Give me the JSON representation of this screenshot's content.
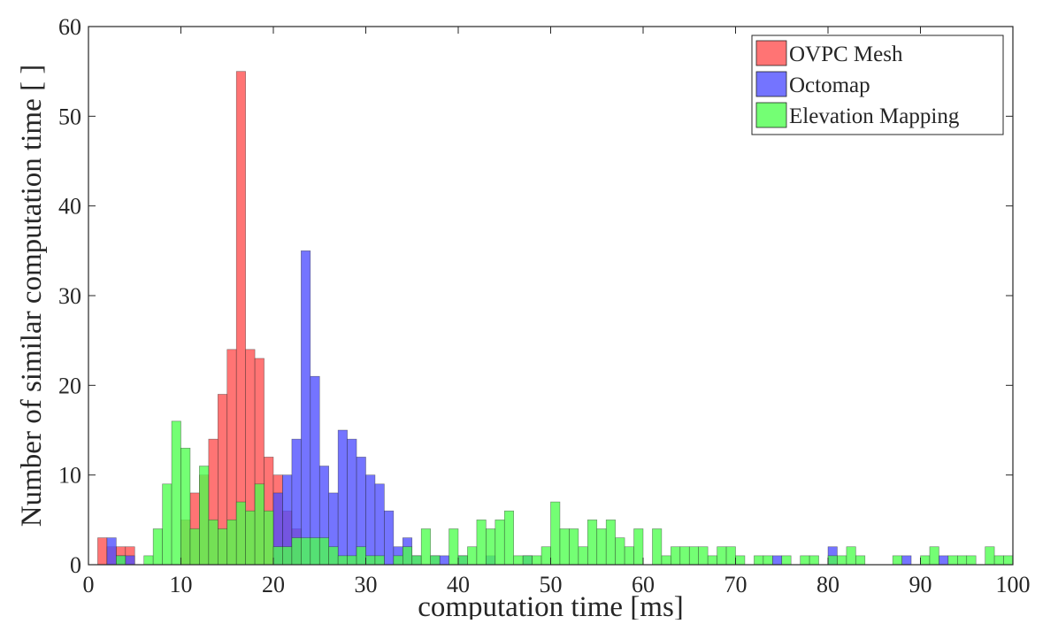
{
  "chart_data": {
    "type": "bar",
    "subtype": "overlaid-histogram",
    "xlabel": "computation time [ms]",
    "ylabel": "Number of similar computation time [ ]",
    "xlim": [
      0,
      100
    ],
    "ylim": [
      0,
      60
    ],
    "xticks": [
      "0",
      "10",
      "20",
      "30",
      "40",
      "50",
      "60",
      "70",
      "80",
      "90",
      "100"
    ],
    "yticks": [
      "0",
      "10",
      "20",
      "30",
      "40",
      "50",
      "60"
    ],
    "grid": false,
    "legend_position": "top-right",
    "bin_width": 1,
    "series": [
      {
        "name": "OVPC Mesh",
        "color": "#ff4d4d",
        "bins": [
          {
            "x0": 1,
            "count": 3
          },
          {
            "x0": 2,
            "count": 2
          },
          {
            "x0": 3,
            "count": 2
          },
          {
            "x0": 4,
            "count": 2
          },
          {
            "x0": 10,
            "count": 5
          },
          {
            "x0": 11,
            "count": 8
          },
          {
            "x0": 12,
            "count": 10
          },
          {
            "x0": 13,
            "count": 14
          },
          {
            "x0": 14,
            "count": 19
          },
          {
            "x0": 15,
            "count": 24
          },
          {
            "x0": 16,
            "count": 55
          },
          {
            "x0": 17,
            "count": 24
          },
          {
            "x0": 18,
            "count": 23
          },
          {
            "x0": 19,
            "count": 12
          },
          {
            "x0": 20,
            "count": 10
          },
          {
            "x0": 21,
            "count": 6
          },
          {
            "x0": 22,
            "count": 4
          }
        ]
      },
      {
        "name": "Octomap",
        "color": "#4d4dff",
        "bins": [
          {
            "x0": 2,
            "count": 3
          },
          {
            "x0": 3,
            "count": 1
          },
          {
            "x0": 4,
            "count": 1
          },
          {
            "x0": 20,
            "count": 8
          },
          {
            "x0": 21,
            "count": 10
          },
          {
            "x0": 22,
            "count": 14
          },
          {
            "x0": 23,
            "count": 35
          },
          {
            "x0": 24,
            "count": 21
          },
          {
            "x0": 25,
            "count": 11
          },
          {
            "x0": 26,
            "count": 8
          },
          {
            "x0": 27,
            "count": 15
          },
          {
            "x0": 28,
            "count": 14
          },
          {
            "x0": 29,
            "count": 12
          },
          {
            "x0": 30,
            "count": 10
          },
          {
            "x0": 31,
            "count": 9
          },
          {
            "x0": 32,
            "count": 6
          },
          {
            "x0": 33,
            "count": 2
          },
          {
            "x0": 34,
            "count": 3
          },
          {
            "x0": 35,
            "count": 1
          },
          {
            "x0": 37,
            "count": 1
          },
          {
            "x0": 38,
            "count": 1
          },
          {
            "x0": 40,
            "count": 1
          },
          {
            "x0": 43,
            "count": 1
          },
          {
            "x0": 47,
            "count": 1
          },
          {
            "x0": 74,
            "count": 1
          },
          {
            "x0": 80,
            "count": 2
          },
          {
            "x0": 88,
            "count": 1
          },
          {
            "x0": 92,
            "count": 1
          }
        ]
      },
      {
        "name": "Elevation Mapping",
        "color": "#4dff4d",
        "bins": [
          {
            "x0": 3,
            "count": 1
          },
          {
            "x0": 6,
            "count": 1
          },
          {
            "x0": 7,
            "count": 4
          },
          {
            "x0": 8,
            "count": 9
          },
          {
            "x0": 9,
            "count": 16
          },
          {
            "x0": 10,
            "count": 13
          },
          {
            "x0": 11,
            "count": 4
          },
          {
            "x0": 12,
            "count": 11
          },
          {
            "x0": 13,
            "count": 5
          },
          {
            "x0": 14,
            "count": 4
          },
          {
            "x0": 15,
            "count": 5
          },
          {
            "x0": 16,
            "count": 7
          },
          {
            "x0": 17,
            "count": 6
          },
          {
            "x0": 18,
            "count": 9
          },
          {
            "x0": 19,
            "count": 6
          },
          {
            "x0": 20,
            "count": 2
          },
          {
            "x0": 21,
            "count": 2
          },
          {
            "x0": 22,
            "count": 3
          },
          {
            "x0": 23,
            "count": 3
          },
          {
            "x0": 24,
            "count": 3
          },
          {
            "x0": 25,
            "count": 3
          },
          {
            "x0": 26,
            "count": 2
          },
          {
            "x0": 27,
            "count": 1
          },
          {
            "x0": 28,
            "count": 1
          },
          {
            "x0": 29,
            "count": 2
          },
          {
            "x0": 30,
            "count": 1
          },
          {
            "x0": 31,
            "count": 1
          },
          {
            "x0": 33,
            "count": 1
          },
          {
            "x0": 34,
            "count": 2
          },
          {
            "x0": 35,
            "count": 1
          },
          {
            "x0": 36,
            "count": 4
          },
          {
            "x0": 37,
            "count": 1
          },
          {
            "x0": 39,
            "count": 4
          },
          {
            "x0": 40,
            "count": 1
          },
          {
            "x0": 41,
            "count": 2
          },
          {
            "x0": 42,
            "count": 5
          },
          {
            "x0": 43,
            "count": 4
          },
          {
            "x0": 44,
            "count": 5
          },
          {
            "x0": 45,
            "count": 6
          },
          {
            "x0": 46,
            "count": 1
          },
          {
            "x0": 47,
            "count": 1
          },
          {
            "x0": 48,
            "count": 1
          },
          {
            "x0": 49,
            "count": 2
          },
          {
            "x0": 50,
            "count": 7
          },
          {
            "x0": 51,
            "count": 4
          },
          {
            "x0": 52,
            "count": 4
          },
          {
            "x0": 53,
            "count": 2
          },
          {
            "x0": 54,
            "count": 5
          },
          {
            "x0": 55,
            "count": 4
          },
          {
            "x0": 56,
            "count": 5
          },
          {
            "x0": 57,
            "count": 3
          },
          {
            "x0": 58,
            "count": 2
          },
          {
            "x0": 59,
            "count": 4
          },
          {
            "x0": 61,
            "count": 4
          },
          {
            "x0": 62,
            "count": 1
          },
          {
            "x0": 63,
            "count": 2
          },
          {
            "x0": 64,
            "count": 2
          },
          {
            "x0": 65,
            "count": 2
          },
          {
            "x0": 66,
            "count": 2
          },
          {
            "x0": 67,
            "count": 1
          },
          {
            "x0": 68,
            "count": 2
          },
          {
            "x0": 69,
            "count": 2
          },
          {
            "x0": 70,
            "count": 1
          },
          {
            "x0": 72,
            "count": 1
          },
          {
            "x0": 73,
            "count": 1
          },
          {
            "x0": 75,
            "count": 1
          },
          {
            "x0": 77,
            "count": 1
          },
          {
            "x0": 78,
            "count": 1
          },
          {
            "x0": 80,
            "count": 1
          },
          {
            "x0": 81,
            "count": 1
          },
          {
            "x0": 82,
            "count": 2
          },
          {
            "x0": 83,
            "count": 1
          },
          {
            "x0": 87,
            "count": 1
          },
          {
            "x0": 90,
            "count": 1
          },
          {
            "x0": 91,
            "count": 2
          },
          {
            "x0": 93,
            "count": 1
          },
          {
            "x0": 94,
            "count": 1
          },
          {
            "x0": 95,
            "count": 1
          },
          {
            "x0": 97,
            "count": 2
          },
          {
            "x0": 98,
            "count": 1
          },
          {
            "x0": 99,
            "count": 1
          }
        ]
      }
    ]
  }
}
